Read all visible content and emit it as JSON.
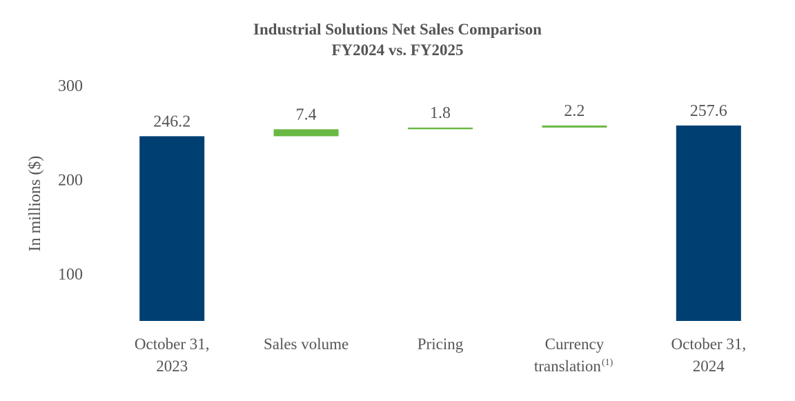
{
  "chart_data": {
    "type": "waterfall",
    "title": "Industrial Solutions Net Sales Comparison",
    "subtitle": "FY2024 vs. FY2025",
    "y_label": "In millions ($)",
    "categories": [
      [
        "October 31,",
        "2023"
      ],
      [
        "Sales volume"
      ],
      [
        "Pricing"
      ],
      [
        "Currency",
        "translation"
      ],
      [
        "October 31,",
        "2024"
      ]
    ],
    "category_notes": [
      null,
      null,
      null,
      "(1)",
      null
    ],
    "values": [
      246.2,
      7.4,
      1.8,
      2.2,
      257.6
    ],
    "measure": [
      "absolute",
      "relative",
      "relative",
      "relative",
      "total"
    ],
    "total_color": "#003f72",
    "increase_color": "#6ab843",
    "ylim": [
      50,
      300
    ],
    "yticks": [
      100,
      200,
      300
    ],
    "grid": false
  }
}
